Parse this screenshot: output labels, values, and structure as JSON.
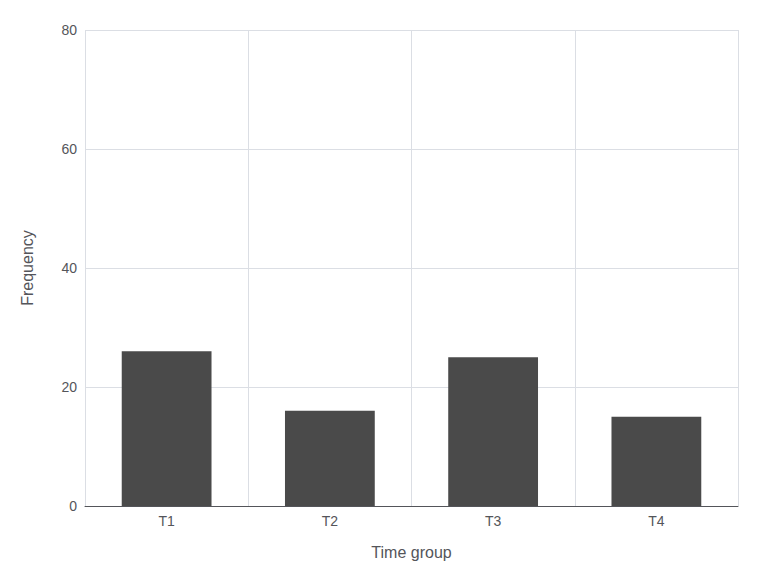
{
  "chart_data": {
    "type": "bar",
    "xlabel": "Time group",
    "ylabel": "Frequency",
    "categories": [
      "T1",
      "T2",
      "T3",
      "T4"
    ],
    "values": [
      26,
      16,
      25,
      15
    ],
    "color": "#4a4a4a",
    "ylim": [
      0,
      80
    ],
    "yticks": [
      0,
      20,
      40,
      60,
      80
    ],
    "grid": true
  }
}
